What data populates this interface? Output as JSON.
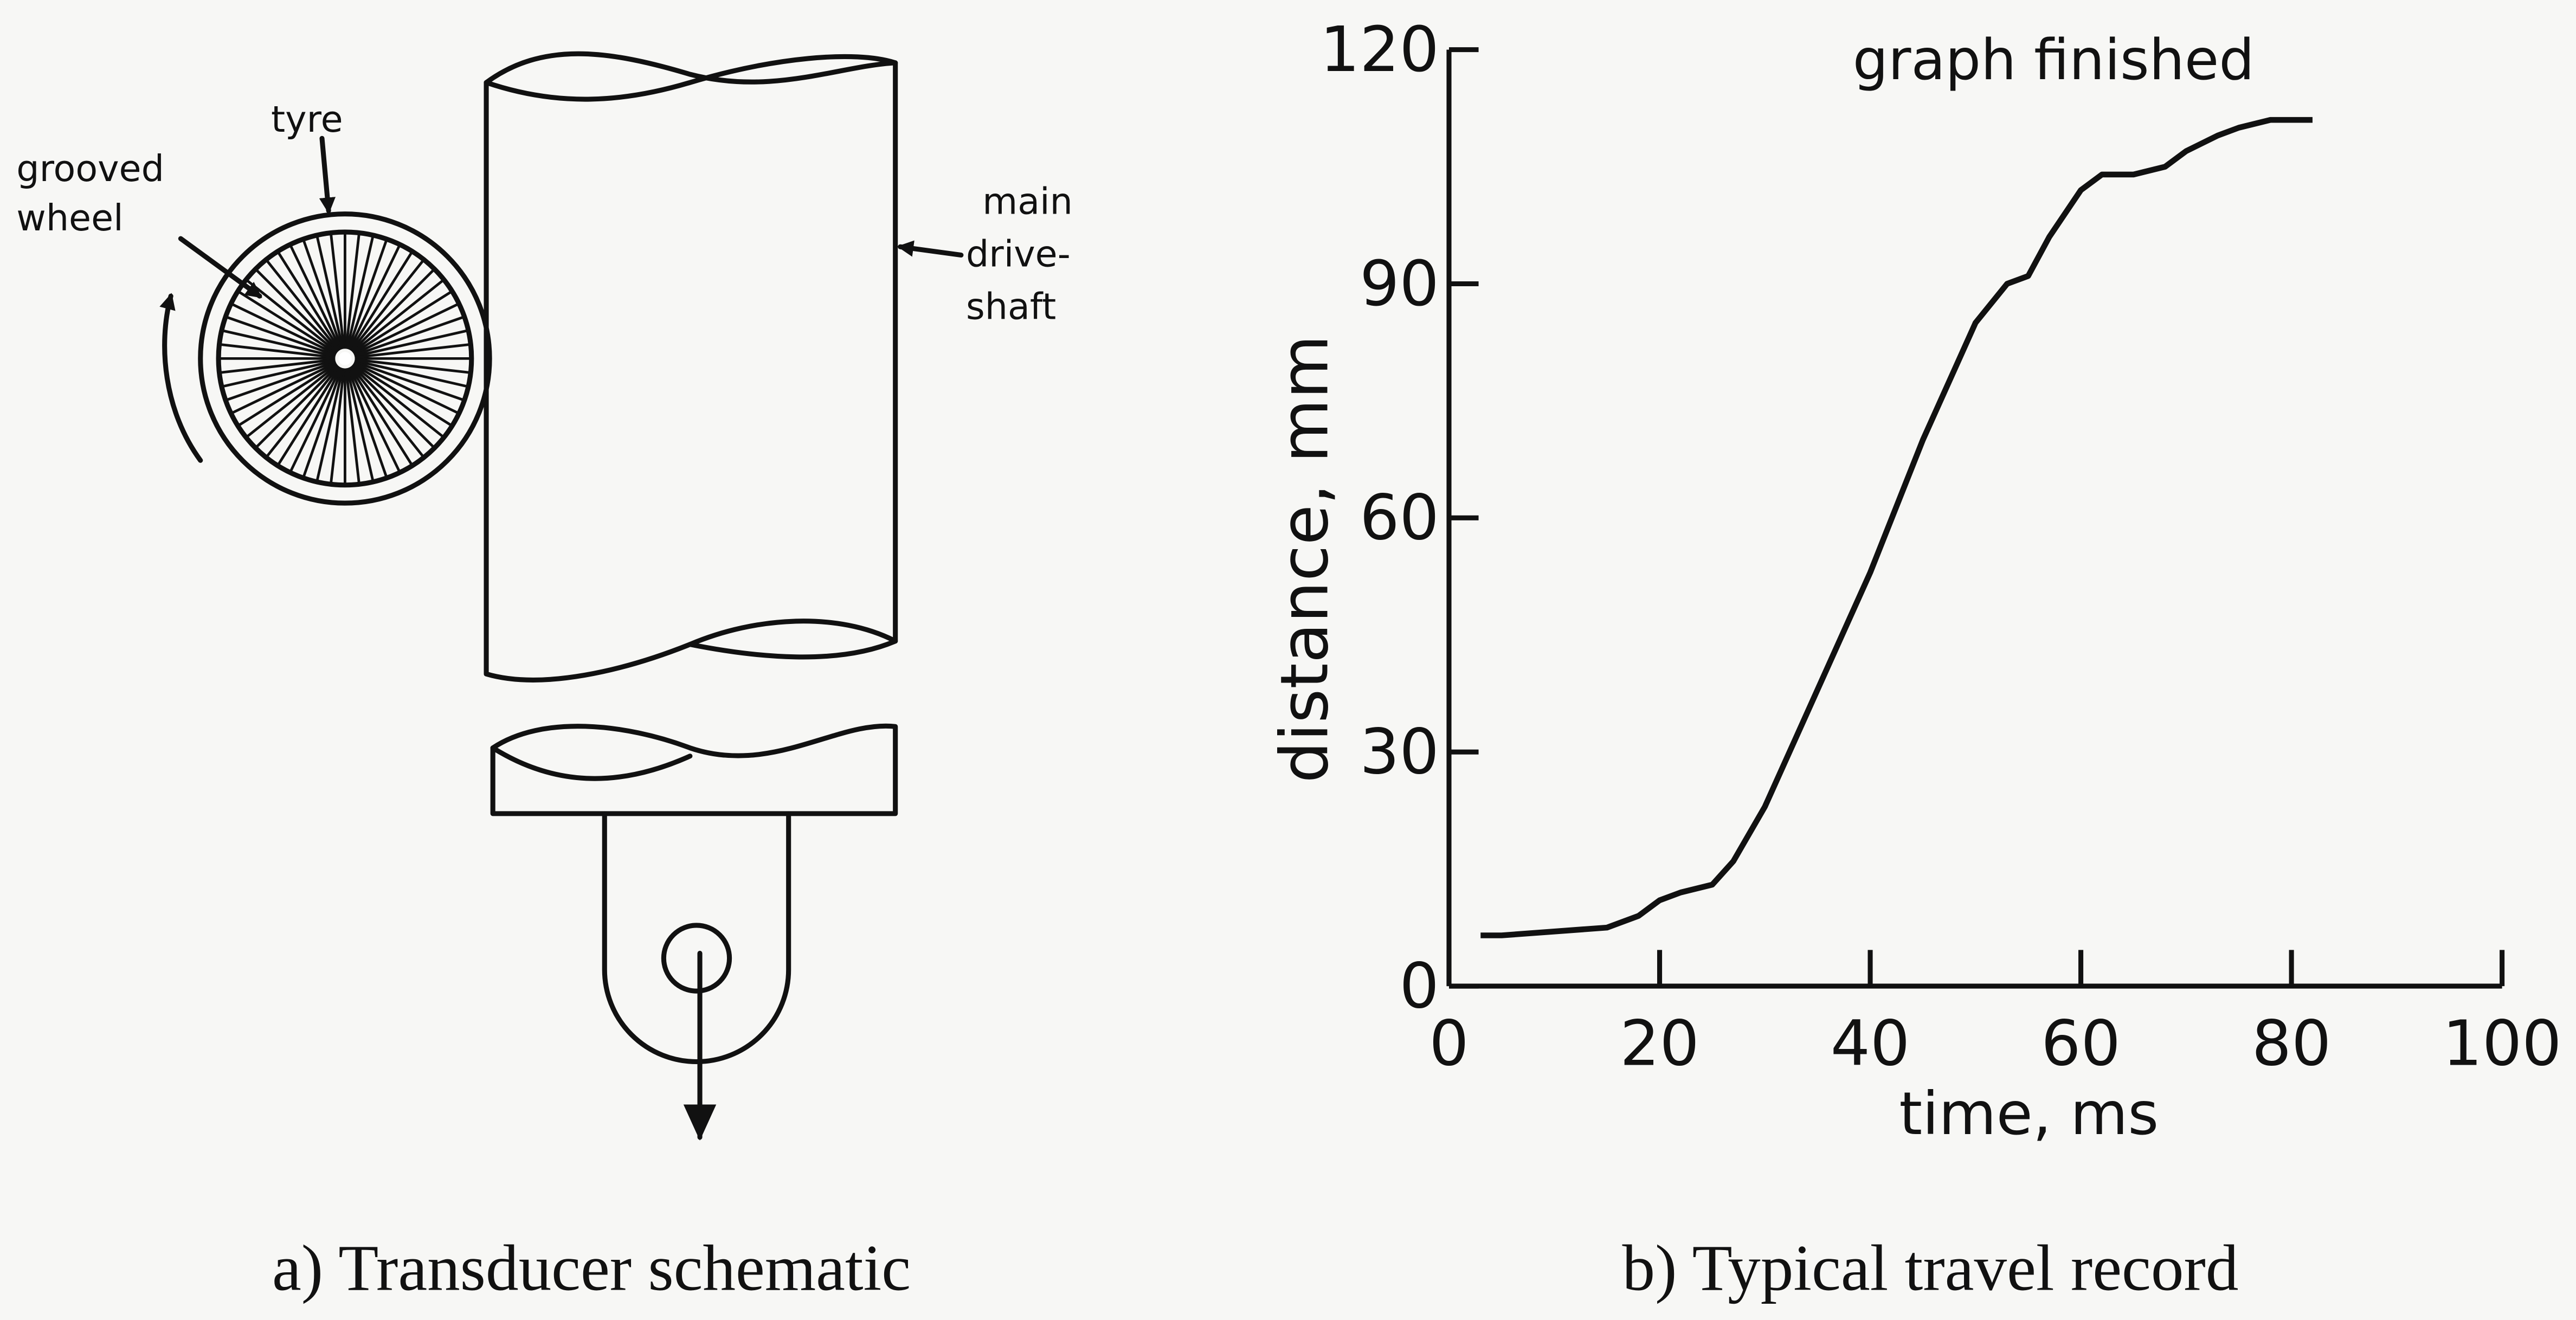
{
  "diagram": {
    "caption": "a) Transducer schematic",
    "labels": [
      {
        "lines": [
          "tyre"
        ]
      },
      {
        "lines": [
          "grooved",
          "wheel"
        ]
      },
      {
        "lines": [
          "main",
          "drive-",
          "shaft"
        ]
      }
    ]
  },
  "chart_data": {
    "type": "line",
    "caption": "b) Typical travel record",
    "annotation": "graph finished",
    "x_label": "time, ms",
    "y_label": "distance, mm",
    "xlim": [
      0,
      100
    ],
    "ylim": [
      0,
      120
    ],
    "xticks": [
      0,
      20,
      40,
      60,
      80,
      100
    ],
    "yticks": [
      0,
      30,
      60,
      90,
      120
    ],
    "grid": false,
    "series": [
      {
        "color": "#111111",
        "x": [
          3,
          5,
          10,
          15,
          18,
          20,
          22,
          25,
          27,
          30,
          35,
          40,
          45,
          50,
          53,
          55,
          57,
          60,
          62,
          65,
          68,
          70,
          73,
          75,
          78,
          80,
          82
        ],
        "values": [
          6.5,
          6.5,
          7,
          7.5,
          9,
          11,
          12,
          13,
          16,
          23,
          38,
          53,
          70,
          85,
          90,
          91,
          96,
          102,
          104,
          104,
          105,
          107,
          109,
          110,
          111,
          111,
          111
        ]
      }
    ]
  }
}
